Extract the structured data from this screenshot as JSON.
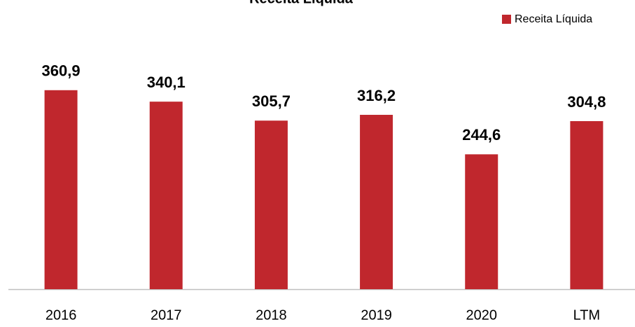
{
  "chart_data": {
    "type": "bar",
    "title": "Receita Líquida",
    "categories": [
      "2016",
      "2017",
      "2018",
      "2019",
      "2020",
      "LTM"
    ],
    "series": [
      {
        "name": "Receita Líquida",
        "color": "#c0272d",
        "values": [
          360.9,
          340.1,
          305.7,
          316.2,
          244.6,
          304.8
        ],
        "value_labels": [
          "360,9",
          "340,1",
          "305,7",
          "316,2",
          "244,6",
          "304,8"
        ]
      }
    ],
    "ylim": [
      0,
      400
    ],
    "legend": "top-right"
  }
}
